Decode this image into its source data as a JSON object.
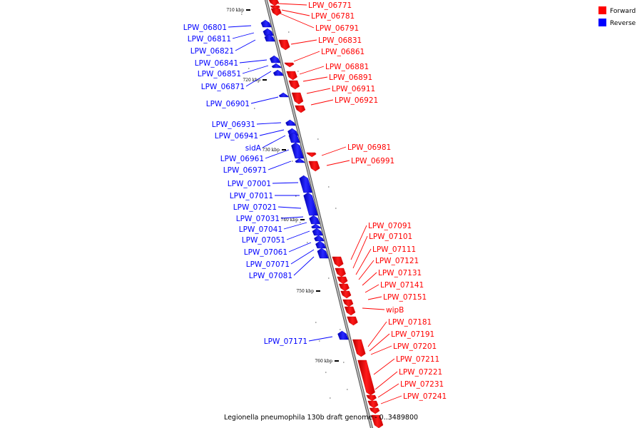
{
  "legend": {
    "items": [
      {
        "label": "Forward",
        "color": "#ff0000"
      },
      {
        "label": "Reverse",
        "color": "#0000ff"
      }
    ]
  },
  "caption": "Legionella pneumophila 130b draft genome - 0..3489800",
  "ticks": [
    "710 kbp",
    "720 kbp",
    "730 kbp",
    "740 kbp",
    "750 kbp",
    "760 kbp"
  ],
  "genes": {
    "forward": [
      "LPW_06771",
      "LPW_06781",
      "LPW_06791",
      "LPW_06831",
      "LPW_06861",
      "LPW_06881",
      "LPW_06891",
      "LPW_06911",
      "LPW_06921",
      "LPW_06981",
      "LPW_06991",
      "LPW_07091",
      "LPW_07101",
      "LPW_07111",
      "LPW_07121",
      "LPW_07131",
      "LPW_07141",
      "LPW_07151",
      "wipB",
      "LPW_07181",
      "LPW_07191",
      "LPW_07201",
      "LPW_07211",
      "LPW_07221",
      "LPW_07231",
      "LPW_07241"
    ],
    "reverse": [
      "LPW_06801",
      "LPW_06811",
      "LPW_06821",
      "LPW_06841",
      "LPW_06851",
      "LPW_06871",
      "LPW_06901",
      "LPW_06931",
      "LPW_06941",
      "sidA",
      "LPW_06961",
      "LPW_06971",
      "LPW_07001",
      "LPW_07011",
      "LPW_07021",
      "LPW_07031",
      "LPW_07041",
      "LPW_07051",
      "LPW_07061",
      "LPW_07071",
      "LPW_07081",
      "LPW_07171"
    ]
  },
  "colors": {
    "forward": "#ff0000",
    "reverse": "#0000ff",
    "axis": "#999999"
  }
}
